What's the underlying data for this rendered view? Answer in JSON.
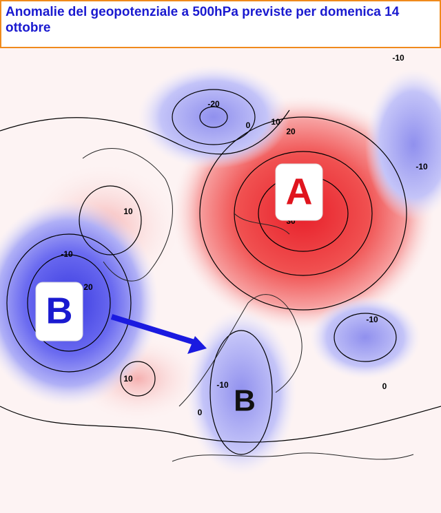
{
  "header": {
    "title": "Anomalie del geopotenziale a 500hPa previste per domenica 14 ottobre"
  },
  "map": {
    "pressure_labels": [
      "A",
      "B",
      "B"
    ],
    "contour_labels": [
      "-10",
      "-20",
      "0",
      "10",
      "20",
      "-10",
      "10",
      "-10",
      "20",
      "30",
      "-10",
      "10",
      "-10",
      "0",
      "0"
    ]
  }
}
